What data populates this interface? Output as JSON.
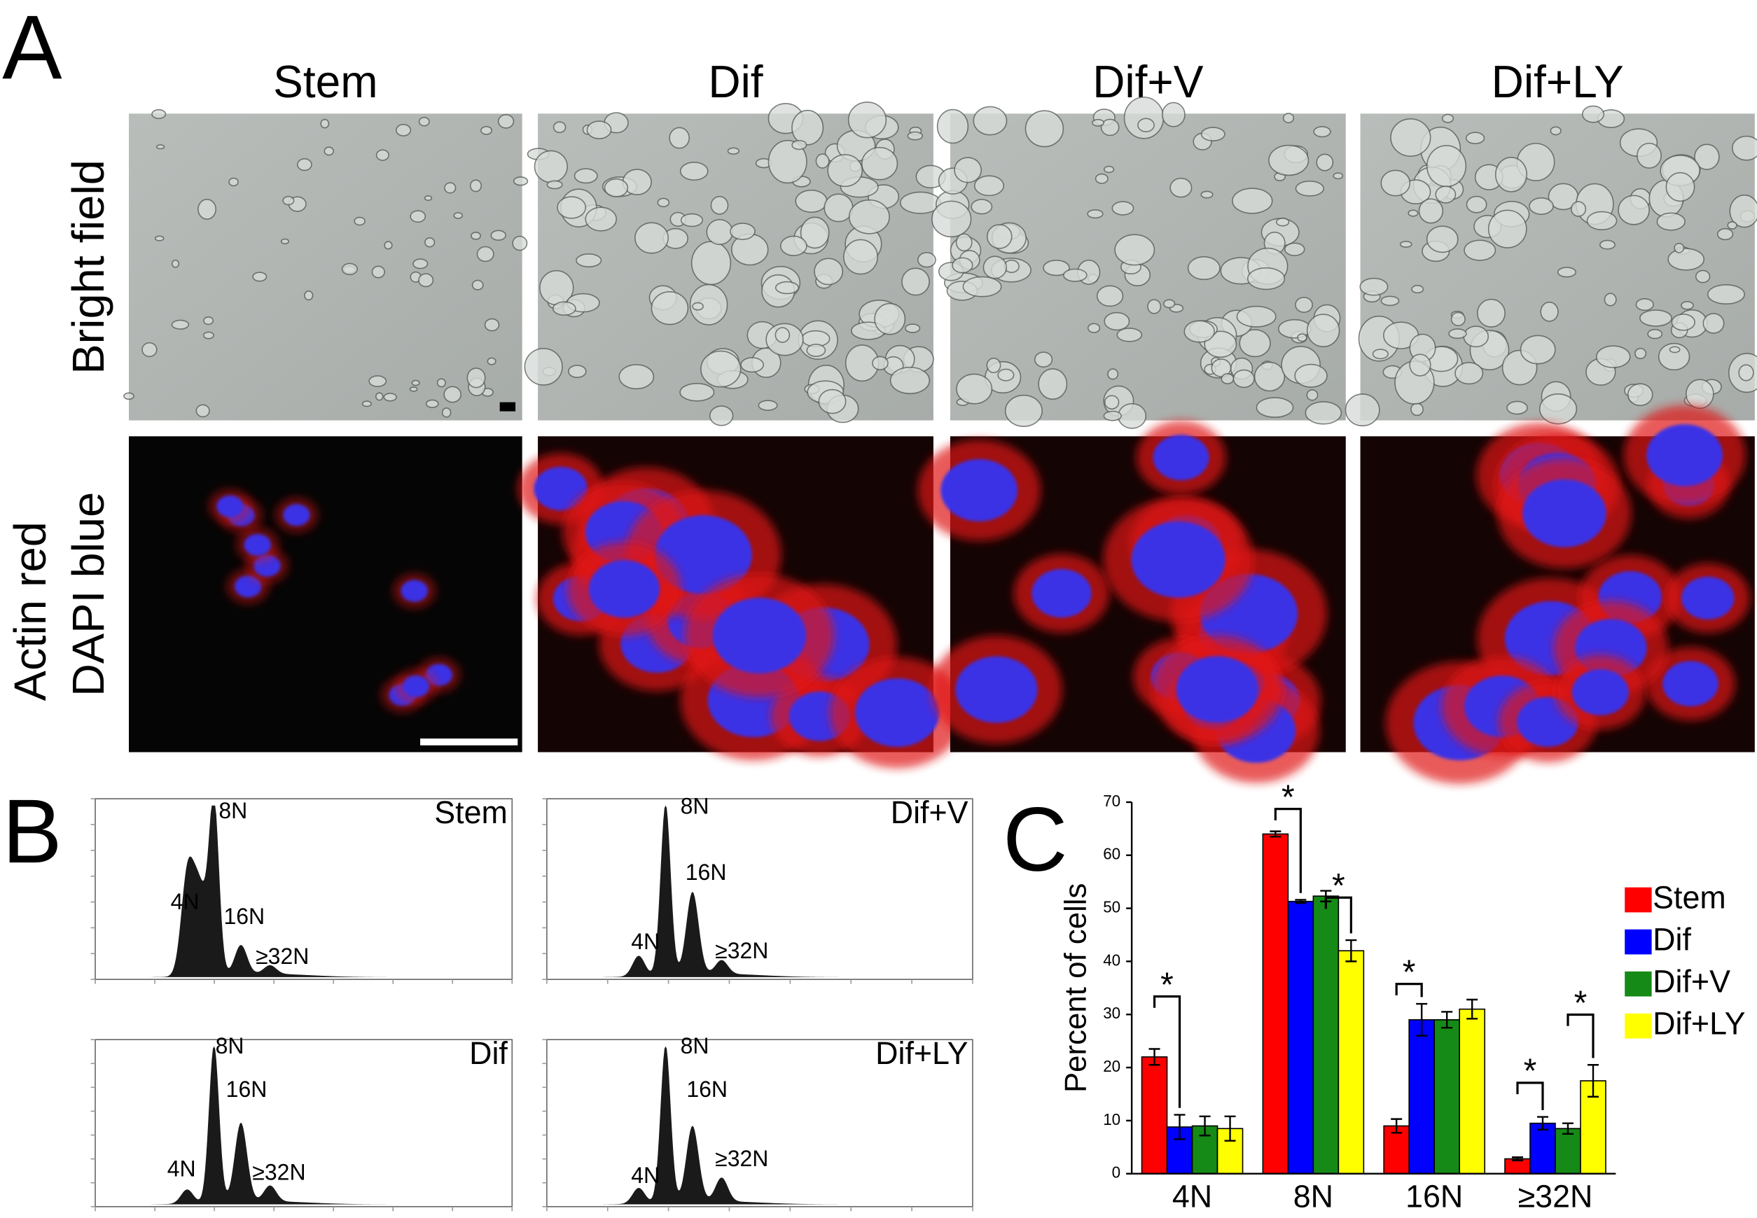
{
  "panel_a": {
    "label": "A",
    "columns": [
      "Stem",
      "Dif",
      "Dif+V",
      "Dif+LY"
    ],
    "row_labels": [
      "Bright field",
      "Actin red",
      "DAPI blue"
    ]
  },
  "panel_b": {
    "label": "B",
    "histograms": [
      {
        "title": "Stem",
        "peaks": [
          "4N",
          "8N",
          "16N",
          "≥32N"
        ]
      },
      {
        "title": "Dif+V",
        "peaks": [
          "4N",
          "8N",
          "16N",
          "≥32N"
        ]
      },
      {
        "title": "Dif",
        "peaks": [
          "4N",
          "8N",
          "16N",
          "≥32N"
        ]
      },
      {
        "title": "Dif+LY",
        "peaks": [
          "4N",
          "8N",
          "16N",
          "≥32N"
        ]
      }
    ]
  },
  "chart_data": {
    "type": "bar",
    "panel_label": "C",
    "y_label": "Percent of cells",
    "categories": [
      "4N",
      "8N",
      "16N",
      "≥32N"
    ],
    "series": [
      {
        "name": "Stem",
        "color": "#ff0000",
        "values": [
          22,
          64,
          9,
          2.8
        ],
        "errors": [
          1.5,
          0.5,
          1.3,
          0.3
        ]
      },
      {
        "name": "Dif",
        "color": "#0000ff",
        "values": [
          8.8,
          51.3,
          29,
          9.5
        ],
        "errors": [
          2.3,
          0.3,
          3,
          1.2
        ]
      },
      {
        "name": "Dif+V",
        "color": "#168a16",
        "values": [
          9,
          52.3,
          29,
          8.5
        ],
        "errors": [
          1.8,
          1,
          1.5,
          1
        ]
      },
      {
        "name": "Dif+LY",
        "color": "#ffff00",
        "values": [
          8.5,
          42,
          31,
          17.5
        ],
        "errors": [
          2.3,
          2,
          1.8,
          3
        ]
      }
    ],
    "annotations": [
      "*",
      "*",
      "*",
      "*",
      "*",
      "*"
    ],
    "ylim": [
      0,
      70
    ],
    "yticks": [
      0,
      10,
      20,
      30,
      40,
      50,
      60,
      70
    ],
    "legend": "right"
  }
}
